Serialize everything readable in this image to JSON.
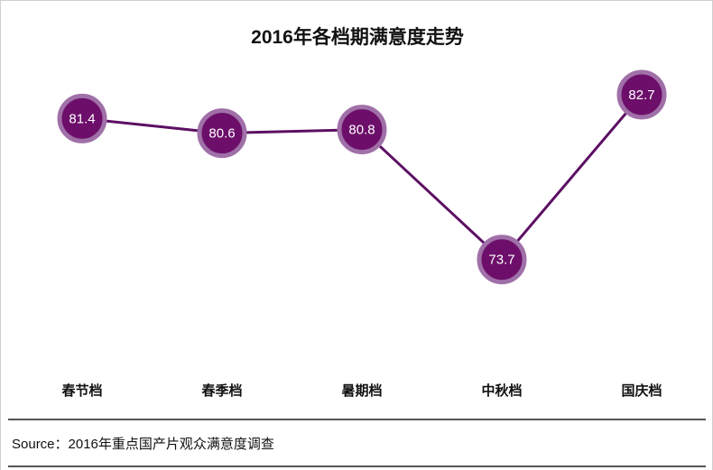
{
  "chart_data": {
    "type": "line",
    "title": "2016年各档期满意度走势",
    "categories": [
      "春节档",
      "春季档",
      "暑期档",
      "中秋档",
      "国庆档"
    ],
    "series": [
      {
        "values": [
          81.4,
          80.6,
          80.8,
          73.7,
          82.7
        ]
      }
    ],
    "value_labels": [
      "81.4",
      "80.6",
      "80.8",
      "73.7",
      "82.7"
    ],
    "ylim": [
      70,
      85
    ],
    "grid": false,
    "legend": "none",
    "colors": {
      "line": "#5c0f63",
      "marker": "#6d0f6a",
      "marker_ring": "#a070a8"
    }
  },
  "source": "Source：2016年重点国产片观众满意度调查"
}
